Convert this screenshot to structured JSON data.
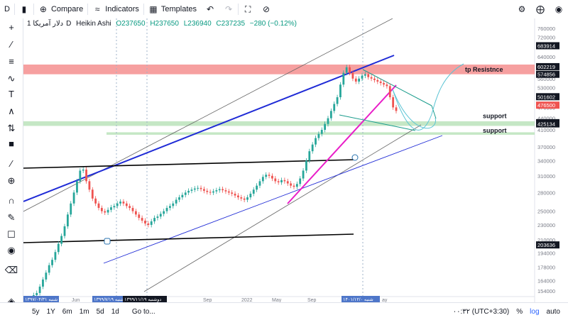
{
  "toolbar": {
    "symbol_btn": "D",
    "compare": "Compare",
    "indicators": "Indicators",
    "templates": "Templates"
  },
  "legend": {
    "symbol": "دلار آمریکا",
    "interval": "1D",
    "style": "Heikin Ashi",
    "o": "O237650",
    "h": "H237650",
    "l": "L236940",
    "c": "C237235",
    "chg": "−280 (−0.12%)"
  },
  "colors": {
    "candle_up": "#26a69a",
    "candle_down": "#ef5350",
    "resistance_band": "#f48f8f",
    "support_band": "#b7e1b7",
    "trend_blue": "#1f2bd6",
    "trend_magenta": "#e91ec8",
    "trend_teal": "#1a9c8c",
    "price_label_dark": "#131722",
    "price_label_red": "#ef5350"
  },
  "bottombar": {
    "ranges": [
      "5y",
      "1Y",
      "6m",
      "1m",
      "5d",
      "1d"
    ],
    "goto": "Go to...",
    "time": "۰۰:۳۲ (UTC+3:30)",
    "percent": "%",
    "log": "log",
    "auto": "auto"
  },
  "chart_data": {
    "type": "candlestick",
    "title": "",
    "xlabel": "",
    "ylabel": "",
    "y_ticks": [
      760000,
      720000,
      680000,
      640000,
      600000,
      560000,
      530000,
      500000,
      470000,
      440000,
      410000,
      370000,
      340000,
      310000,
      280000,
      250000,
      230000,
      210000,
      194000,
      178000,
      164000,
      154000
    ],
    "x_ticks": [
      "Jun",
      "Sep",
      "2022",
      "May",
      "Sep",
      "ay"
    ],
    "x_date_labels": [
      "۱۳۹۷/۰۴/۳۱ شنبه",
      "۱۳۹۹/۷/۱۹ شنبه",
      "۱۳۹۹/۱۱/۱۹ دوشنبه",
      "۱۴۰۱/۱۲/۰ شنبه"
    ],
    "price_labels": [
      {
        "value": "683914",
        "style": "dark"
      },
      {
        "value": "602219",
        "style": "dark"
      },
      {
        "value": "574856",
        "style": "dark"
      },
      {
        "value": "501602",
        "style": "dark"
      },
      {
        "value": "476500",
        "style": "red"
      },
      {
        "value": "428363",
        "style": "dark"
      },
      {
        "value": "425134",
        "style": "dark"
      },
      {
        "value": "203636",
        "style": "dark"
      }
    ],
    "annotations": [
      {
        "text": "tp   Resistnce"
      },
      {
        "text": "support"
      },
      {
        "text": "support"
      }
    ],
    "series_close": [
      145000,
      150000,
      152000,
      158000,
      165000,
      172000,
      180000,
      186000,
      195000,
      205000,
      215000,
      228000,
      245000,
      262000,
      280000,
      300000,
      320000,
      322000,
      300000,
      285000,
      270000,
      262000,
      255000,
      250000,
      248000,
      252000,
      256000,
      258000,
      262000,
      265000,
      262000,
      258000,
      255000,
      250000,
      245000,
      240000,
      236000,
      232000,
      230000,
      235000,
      240000,
      242000,
      246000,
      250000,
      255000,
      258000,
      262000,
      268000,
      272000,
      276000,
      280000,
      283000,
      285000,
      287000,
      288000,
      286000,
      283000,
      281000,
      280000,
      282000,
      284000,
      286000,
      284000,
      282000,
      280000,
      278000,
      275000,
      272000,
      270000,
      268000,
      272000,
      278000,
      285000,
      292000,
      300000,
      308000,
      312000,
      310000,
      305000,
      300000,
      298000,
      302000,
      300000,
      296000,
      292000,
      290000,
      295000,
      305000,
      320000,
      340000,
      360000,
      375000,
      390000,
      400000,
      410000,
      425000,
      440000,
      460000,
      480000,
      500000,
      540000,
      580000,
      600000,
      580000,
      560000,
      550000,
      560000,
      570000,
      575000,
      565000,
      560000,
      555000,
      550000,
      545000,
      540000,
      535000,
      500000,
      470000,
      460000
    ]
  }
}
